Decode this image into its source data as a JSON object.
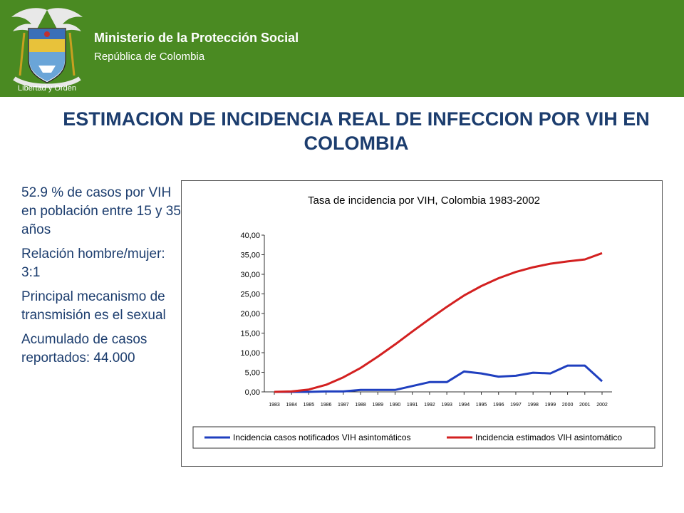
{
  "header": {
    "ministry": "Ministerio de la Protección Social",
    "republic": "República de Colombia",
    "motto": "Libertad y Orden"
  },
  "colors": {
    "header_green": "#4a8a22",
    "title_blue": "#1c3d6e"
  },
  "slide": {
    "title": "ESTIMACION DE INCIDENCIA REAL DE INFECCION POR VIH EN COLOMBIA",
    "bullets": [
      "52.9 % de casos por VIH  en población entre 15 y  35 años",
      "Relación hombre/mujer: 3:1",
      "Principal mecanismo de transmisión es el sexual",
      "Acumulado de casos reportados: 44.000"
    ]
  },
  "chart_data": {
    "type": "line",
    "title": "Tasa de incidencia por VIH, Colombia 1983-2002",
    "x": [
      "1983",
      "1984",
      "1985",
      "1986",
      "1987",
      "1988",
      "1989",
      "1990",
      "1991",
      "1992",
      "1993",
      "1994",
      "1995",
      "1996",
      "1997",
      "1998",
      "1999",
      "2000",
      "2001",
      "2002"
    ],
    "y_ticks": [
      "0,00",
      "5,00",
      "10,00",
      "15,00",
      "20,00",
      "25,00",
      "30,00",
      "35,00",
      "40,00"
    ],
    "ylim": [
      0,
      40
    ],
    "grid": false,
    "legend_position": "bottom",
    "series": [
      {
        "name": "Incidencia casos notificados VIH asintomáticos",
        "color": "#1f3fbf",
        "values": [
          0.0,
          0.0,
          0.0,
          0.1,
          0.1,
          0.5,
          0.5,
          0.5,
          1.5,
          2.5,
          2.5,
          5.2,
          4.7,
          3.9,
          4.1,
          4.9,
          4.7,
          6.7,
          6.7,
          2.7
        ]
      },
      {
        "name": "Incidencia estimados VIH asintomático",
        "color": "#d32020",
        "values": [
          0.0,
          0.1,
          0.6,
          1.8,
          3.7,
          6.1,
          9.0,
          12.1,
          15.4,
          18.6,
          21.7,
          24.6,
          27.0,
          29.0,
          30.6,
          31.8,
          32.7,
          33.3,
          33.8,
          35.4
        ]
      }
    ]
  }
}
